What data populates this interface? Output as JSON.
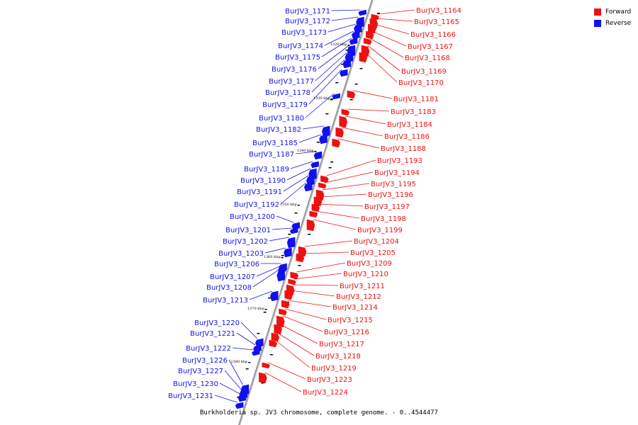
{
  "caption": "Burkholderia sp. JV3 chromosome, complete genome. - 0..4544477",
  "legend": [
    {
      "label": "Forward",
      "color": "#ee1111"
    },
    {
      "label": "Reverse",
      "color": "#1111ee"
    }
  ],
  "colors": {
    "forward": "#ee1111",
    "reverse": "#1111ee",
    "axis": "#888888"
  },
  "chart_data": {
    "type": "genome-map",
    "ticks": [
      "1320 kbp",
      "1330 kbp",
      "1340 kbp",
      "1350 kbp",
      "1360 kbp",
      "1370 kbp",
      "1380 kbp"
    ],
    "reverse_genes": [
      "BurJV3_1171",
      "BurJV3_1172",
      "BurJV3_1173",
      "BurJV3_1174",
      "BurJV3_1175",
      "BurJV3_1176",
      "BurJV3_1177",
      "BurJV3_1178",
      "BurJV3_1179",
      "BurJV3_1180",
      "BurJV3_1182",
      "BurJV3_1185",
      "BurJV3_1187",
      "BurJV3_1189",
      "BurJV3_1190",
      "BurJV3_1191",
      "BurJV3_1192",
      "BurJV3_1200",
      "BurJV3_1201",
      "BurJV3_1202",
      "BurJV3_1203",
      "BurJV3_1206",
      "BurJV3_1207",
      "BurJV3_1208",
      "BurJV3_1213",
      "BurJV3_1220",
      "BurJV3_1221",
      "BurJV3_1222",
      "BurJV3_1226",
      "BurJV3_1227",
      "BurJV3_1230",
      "BurJV3_1231"
    ],
    "forward_top_genes": [
      "BurJV3_1164",
      "BurJV3_1165",
      "BurJV3_1166",
      "BurJV3_1167",
      "BurJV3_1168",
      "BurJV3_1169",
      "BurJV3_1170"
    ],
    "forward_genes": [
      "BurJV3_1181",
      "BurJV3_1183",
      "BurJV3_1184",
      "BurJV3_1186",
      "BurJV3_1188",
      "BurJV3_1193",
      "BurJV3_1194",
      "BurJV3_1195",
      "BurJV3_1196",
      "BurJV3_1197",
      "BurJV3_1198",
      "BurJV3_1199",
      "BurJV3_1204",
      "BurJV3_1205",
      "BurJV3_1209",
      "BurJV3_1210",
      "BurJV3_1211",
      "BurJV3_1212",
      "BurJV3_1214",
      "BurJV3_1215",
      "BurJV3_1216",
      "BurJV3_1217",
      "BurJV3_1218",
      "BurJV3_1219",
      "BurJV3_1223",
      "BurJV3_1224"
    ]
  }
}
